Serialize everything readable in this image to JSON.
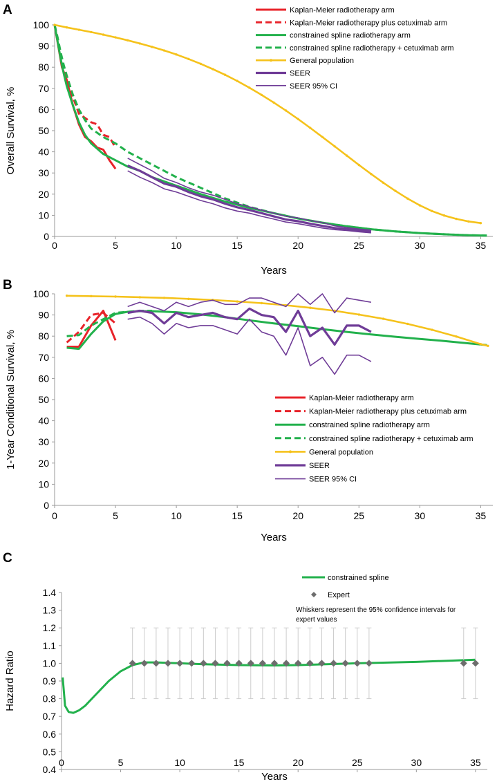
{
  "colors": {
    "km": "#e8232a",
    "spline": "#22b14c",
    "gen": "#f5c21b",
    "seer": "#6f3c97",
    "expert": "#6d6d6d",
    "whisker": "#cccccc",
    "axis": "#999999"
  },
  "chart_data": [
    {
      "panel": "A",
      "type": "line",
      "xlabel": "Years",
      "ylabel": "Overall Survival, %",
      "xlim": [
        0,
        36
      ],
      "ylim": [
        0,
        100
      ],
      "xticks": [
        0,
        5,
        10,
        15,
        20,
        25,
        30,
        35
      ],
      "yticks": [
        0,
        10,
        20,
        30,
        40,
        50,
        60,
        70,
        80,
        90,
        100
      ],
      "legend_position": "top-right",
      "series": [
        {
          "name": "Kaplan-Meier radiotherapy arm",
          "style": "km",
          "x": [
            0,
            0.3,
            0.6,
            1,
            1.5,
            2,
            2.5,
            3,
            3.5,
            4,
            4.5,
            5
          ],
          "y": [
            100,
            90,
            80,
            74,
            62,
            53,
            47,
            45,
            42,
            41,
            36,
            32
          ]
        },
        {
          "name": "Kaplan-Meier radiotherapy plus cetuximab arm",
          "style": "km_dash",
          "x": [
            0,
            0.3,
            0.6,
            1,
            1.5,
            2,
            2.5,
            3,
            3.5,
            4,
            4.5,
            5
          ],
          "y": [
            100,
            92,
            82,
            76,
            66,
            58,
            56,
            54,
            53,
            48,
            47,
            42
          ]
        },
        {
          "name": "constrained spline radiotherapy arm",
          "style": "spline",
          "x": [
            0,
            0.25,
            0.5,
            0.75,
            1,
            1.5,
            2,
            2.5,
            3,
            4,
            5,
            6,
            7,
            8,
            9,
            10,
            12,
            14,
            16,
            18,
            20,
            22,
            24,
            26,
            28,
            30,
            32,
            34,
            35.5
          ],
          "y": [
            100,
            92,
            84,
            77,
            71,
            62,
            54,
            48,
            44,
            39,
            36,
            33,
            31,
            28,
            26,
            24,
            20,
            16.5,
            13.5,
            11,
            8.5,
            6.5,
            4.8,
            3.4,
            2.4,
            1.6,
            1.0,
            0.6,
            0.4
          ]
        },
        {
          "name": "constrained spline radiotherapy + cetuximab arm",
          "style": "spline_dash",
          "x": [
            0,
            0.25,
            0.5,
            0.75,
            1,
            1.5,
            2,
            2.5,
            3,
            4,
            5,
            6,
            7,
            8,
            9,
            10,
            12,
            14,
            16,
            18,
            20,
            22,
            24,
            26,
            28,
            30,
            32,
            34,
            35.5
          ],
          "y": [
            100,
            94,
            87,
            81,
            76,
            67,
            60,
            55,
            51,
            47,
            44,
            40,
            37,
            34,
            31,
            28,
            23,
            18,
            14,
            11,
            8.5,
            6.5,
            4.8,
            3.4,
            2.4,
            1.6,
            1.0,
            0.6,
            0.4
          ]
        },
        {
          "name": "General population",
          "style": "gen",
          "x": [
            0,
            1,
            2,
            3,
            4,
            5,
            6,
            7,
            8,
            9,
            10,
            11,
            12,
            13,
            14,
            15,
            16,
            17,
            18,
            19,
            20,
            21,
            22,
            23,
            24,
            25,
            26,
            27,
            28,
            29,
            30,
            31,
            32,
            33,
            34,
            35
          ],
          "y": [
            100,
            98.8,
            97.7,
            96.6,
            95.4,
            94.1,
            92.7,
            91.2,
            89.6,
            87.9,
            86.0,
            83.9,
            81.6,
            79.1,
            76.4,
            73.5,
            70.3,
            66.9,
            63.3,
            59.5,
            55.5,
            51.3,
            47.0,
            42.6,
            38.2,
            33.8,
            29.5,
            25.4,
            21.5,
            17.9,
            14.7,
            12.0,
            9.9,
            8.3,
            7.1,
            6.3
          ]
        },
        {
          "name": "SEER",
          "style": "seer",
          "x": [
            6,
            7,
            8,
            9,
            10,
            11,
            12,
            13,
            14,
            15,
            16,
            17,
            18,
            19,
            20,
            21,
            22,
            23,
            24,
            25,
            26
          ],
          "y": [
            33.5,
            31,
            28,
            25,
            23.5,
            21,
            19,
            17.5,
            15.5,
            13.8,
            12.5,
            11,
            9.5,
            8,
            7.2,
            6,
            5,
            4,
            3.5,
            2.8,
            2.3
          ]
        },
        {
          "name": "SEER 95% CI",
          "style": "seer_ci",
          "x": [
            6,
            7,
            8,
            9,
            10,
            11,
            12,
            13,
            14,
            15,
            16,
            17,
            18,
            19,
            20,
            21,
            22,
            23,
            24,
            25,
            26
          ],
          "y": [
            37,
            34,
            31,
            27.5,
            25.5,
            23,
            21,
            19.5,
            17.5,
            15.5,
            14,
            12.5,
            11,
            9.5,
            8.8,
            7.5,
            6.5,
            5,
            4.2,
            3.5,
            3
          ]
        },
        {
          "name": "",
          "style": "seer_ci",
          "x": [
            6,
            7,
            8,
            9,
            10,
            11,
            12,
            13,
            14,
            15,
            16,
            17,
            18,
            19,
            20,
            21,
            22,
            23,
            24,
            25,
            26
          ],
          "y": [
            31,
            28,
            25.5,
            22.5,
            21,
            19,
            17,
            15.5,
            13.5,
            12,
            11,
            9.5,
            8.2,
            6.8,
            6,
            5,
            4,
            3.2,
            2.8,
            2.2,
            1.7
          ]
        }
      ]
    },
    {
      "panel": "B",
      "type": "line",
      "xlabel": "Years",
      "ylabel": "1-Year Conditional Survival, %",
      "xlim": [
        0,
        36
      ],
      "ylim": [
        0,
        100
      ],
      "xticks": [
        0,
        5,
        10,
        15,
        20,
        25,
        30,
        35
      ],
      "yticks": [
        0,
        10,
        20,
        30,
        40,
        50,
        60,
        70,
        80,
        90,
        100
      ],
      "legend_position": "center-right",
      "series": [
        {
          "name": "Kaplan-Meier radiotherapy arm",
          "style": "km",
          "x": [
            1,
            2,
            3,
            4,
            5
          ],
          "y": [
            75,
            75,
            85,
            92,
            78
          ]
        },
        {
          "name": "Kaplan-Meier radiotherapy plus cetuximab arm",
          "style": "km_dash",
          "x": [
            1,
            2,
            3,
            4,
            5
          ],
          "y": [
            77,
            82,
            90,
            91,
            86
          ]
        },
        {
          "name": "constrained spline radiotherapy arm",
          "style": "spline",
          "x": [
            1,
            2,
            3,
            4,
            5,
            6,
            7,
            8,
            10,
            12,
            14,
            16,
            18,
            20,
            22,
            24,
            26,
            28,
            30,
            32,
            34,
            35.5
          ],
          "y": [
            74.5,
            74,
            81,
            87,
            90.5,
            91.5,
            91.8,
            91.8,
            91.3,
            90.3,
            89,
            87.5,
            86,
            84.7,
            83.3,
            82,
            80.8,
            79.7,
            78.7,
            77.7,
            76.6,
            75.8
          ]
        },
        {
          "name": "constrained spline radiotherapy + cetuximab arm",
          "style": "spline_dash",
          "x": [
            1,
            2,
            3,
            4,
            5,
            6,
            7,
            8
          ],
          "y": [
            80,
            80.5,
            85,
            88,
            91,
            91.5,
            92,
            92
          ]
        },
        {
          "name": "General population",
          "style": "gen",
          "x": [
            1,
            3,
            5,
            7,
            9,
            11,
            13,
            15,
            17,
            19,
            21,
            23,
            25,
            27,
            29,
            31,
            33,
            35,
            35.6
          ],
          "y": [
            99.1,
            98.9,
            98.7,
            98.4,
            98.1,
            97.6,
            97.1,
            96.4,
            95.6,
            94.6,
            93.4,
            92.0,
            90.2,
            88.2,
            85.8,
            83.0,
            79.8,
            76.2,
            75.4
          ]
        },
        {
          "name": "SEER",
          "style": "seer",
          "x": [
            6,
            7,
            8,
            9,
            10,
            11,
            12,
            13,
            14,
            15,
            16,
            17,
            18,
            19,
            20,
            21,
            22,
            23,
            24,
            25,
            26
          ],
          "y": [
            91,
            92,
            91,
            86,
            91,
            89,
            90,
            91,
            89,
            88,
            93,
            90,
            89,
            82,
            92,
            80,
            84,
            76,
            85,
            85,
            82
          ]
        },
        {
          "name": "SEER 95% CI",
          "style": "seer_ci",
          "x": [
            6,
            7,
            8,
            9,
            10,
            11,
            12,
            13,
            14,
            15,
            16,
            17,
            18,
            19,
            20,
            21,
            22,
            23,
            24,
            25,
            26
          ],
          "y": [
            94,
            96,
            94,
            92,
            96,
            94,
            96,
            97,
            95,
            95,
            98,
            98,
            96,
            94,
            100,
            95,
            100,
            91,
            98,
            97,
            96
          ]
        },
        {
          "name": "",
          "style": "seer_ci",
          "x": [
            6,
            7,
            8,
            9,
            10,
            11,
            12,
            13,
            14,
            15,
            16,
            17,
            18,
            19,
            20,
            21,
            22,
            23,
            24,
            25,
            26
          ],
          "y": [
            88,
            89,
            86,
            81,
            86,
            84,
            85,
            85,
            83,
            81,
            88,
            82,
            80,
            71,
            84,
            66,
            70,
            62,
            71,
            71,
            68
          ]
        }
      ]
    },
    {
      "panel": "C",
      "type": "line",
      "xlabel": "Years",
      "ylabel": "Hazard Ratio",
      "xlim": [
        0,
        36
      ],
      "ylim": [
        0.4,
        1.4
      ],
      "xticks": [
        0,
        5,
        10,
        15,
        20,
        25,
        30,
        35
      ],
      "yticks": [
        0.4,
        0.5,
        0.6,
        0.7,
        0.8,
        0.9,
        1.0,
        1.1,
        1.2,
        1.3,
        1.4
      ],
      "legend_position": "top-center",
      "annotation": "Whiskers represent the 95% confidence intervals for expert values",
      "series": [
        {
          "name": "constrained spline",
          "style": "spline",
          "x": [
            0.1,
            0.3,
            0.6,
            1,
            1.5,
            2,
            3,
            4,
            5,
            6,
            7,
            8,
            10,
            12,
            15,
            18,
            20,
            25,
            30,
            35
          ],
          "y": [
            0.92,
            0.76,
            0.725,
            0.72,
            0.735,
            0.76,
            0.83,
            0.9,
            0.955,
            0.99,
            1.005,
            1.005,
            1.0,
            0.995,
            0.99,
            0.988,
            0.99,
            1.0,
            1.008,
            1.02
          ]
        },
        {
          "name": "Expert",
          "style": "expert",
          "x": [
            6,
            7,
            8,
            9,
            10,
            11,
            12,
            13,
            14,
            15,
            16,
            17,
            18,
            19,
            20,
            21,
            22,
            23,
            24,
            25,
            26,
            34,
            35
          ],
          "y": [
            1,
            1,
            1,
            1,
            1,
            1,
            1,
            1,
            1,
            1,
            1,
            1,
            1,
            1,
            1,
            1,
            1,
            1,
            1,
            1,
            1,
            1,
            1
          ],
          "lower": 0.8,
          "upper": 1.2
        }
      ]
    }
  ],
  "panels": [
    {
      "letter": "A"
    },
    {
      "letter": "B"
    },
    {
      "letter": "C"
    }
  ]
}
